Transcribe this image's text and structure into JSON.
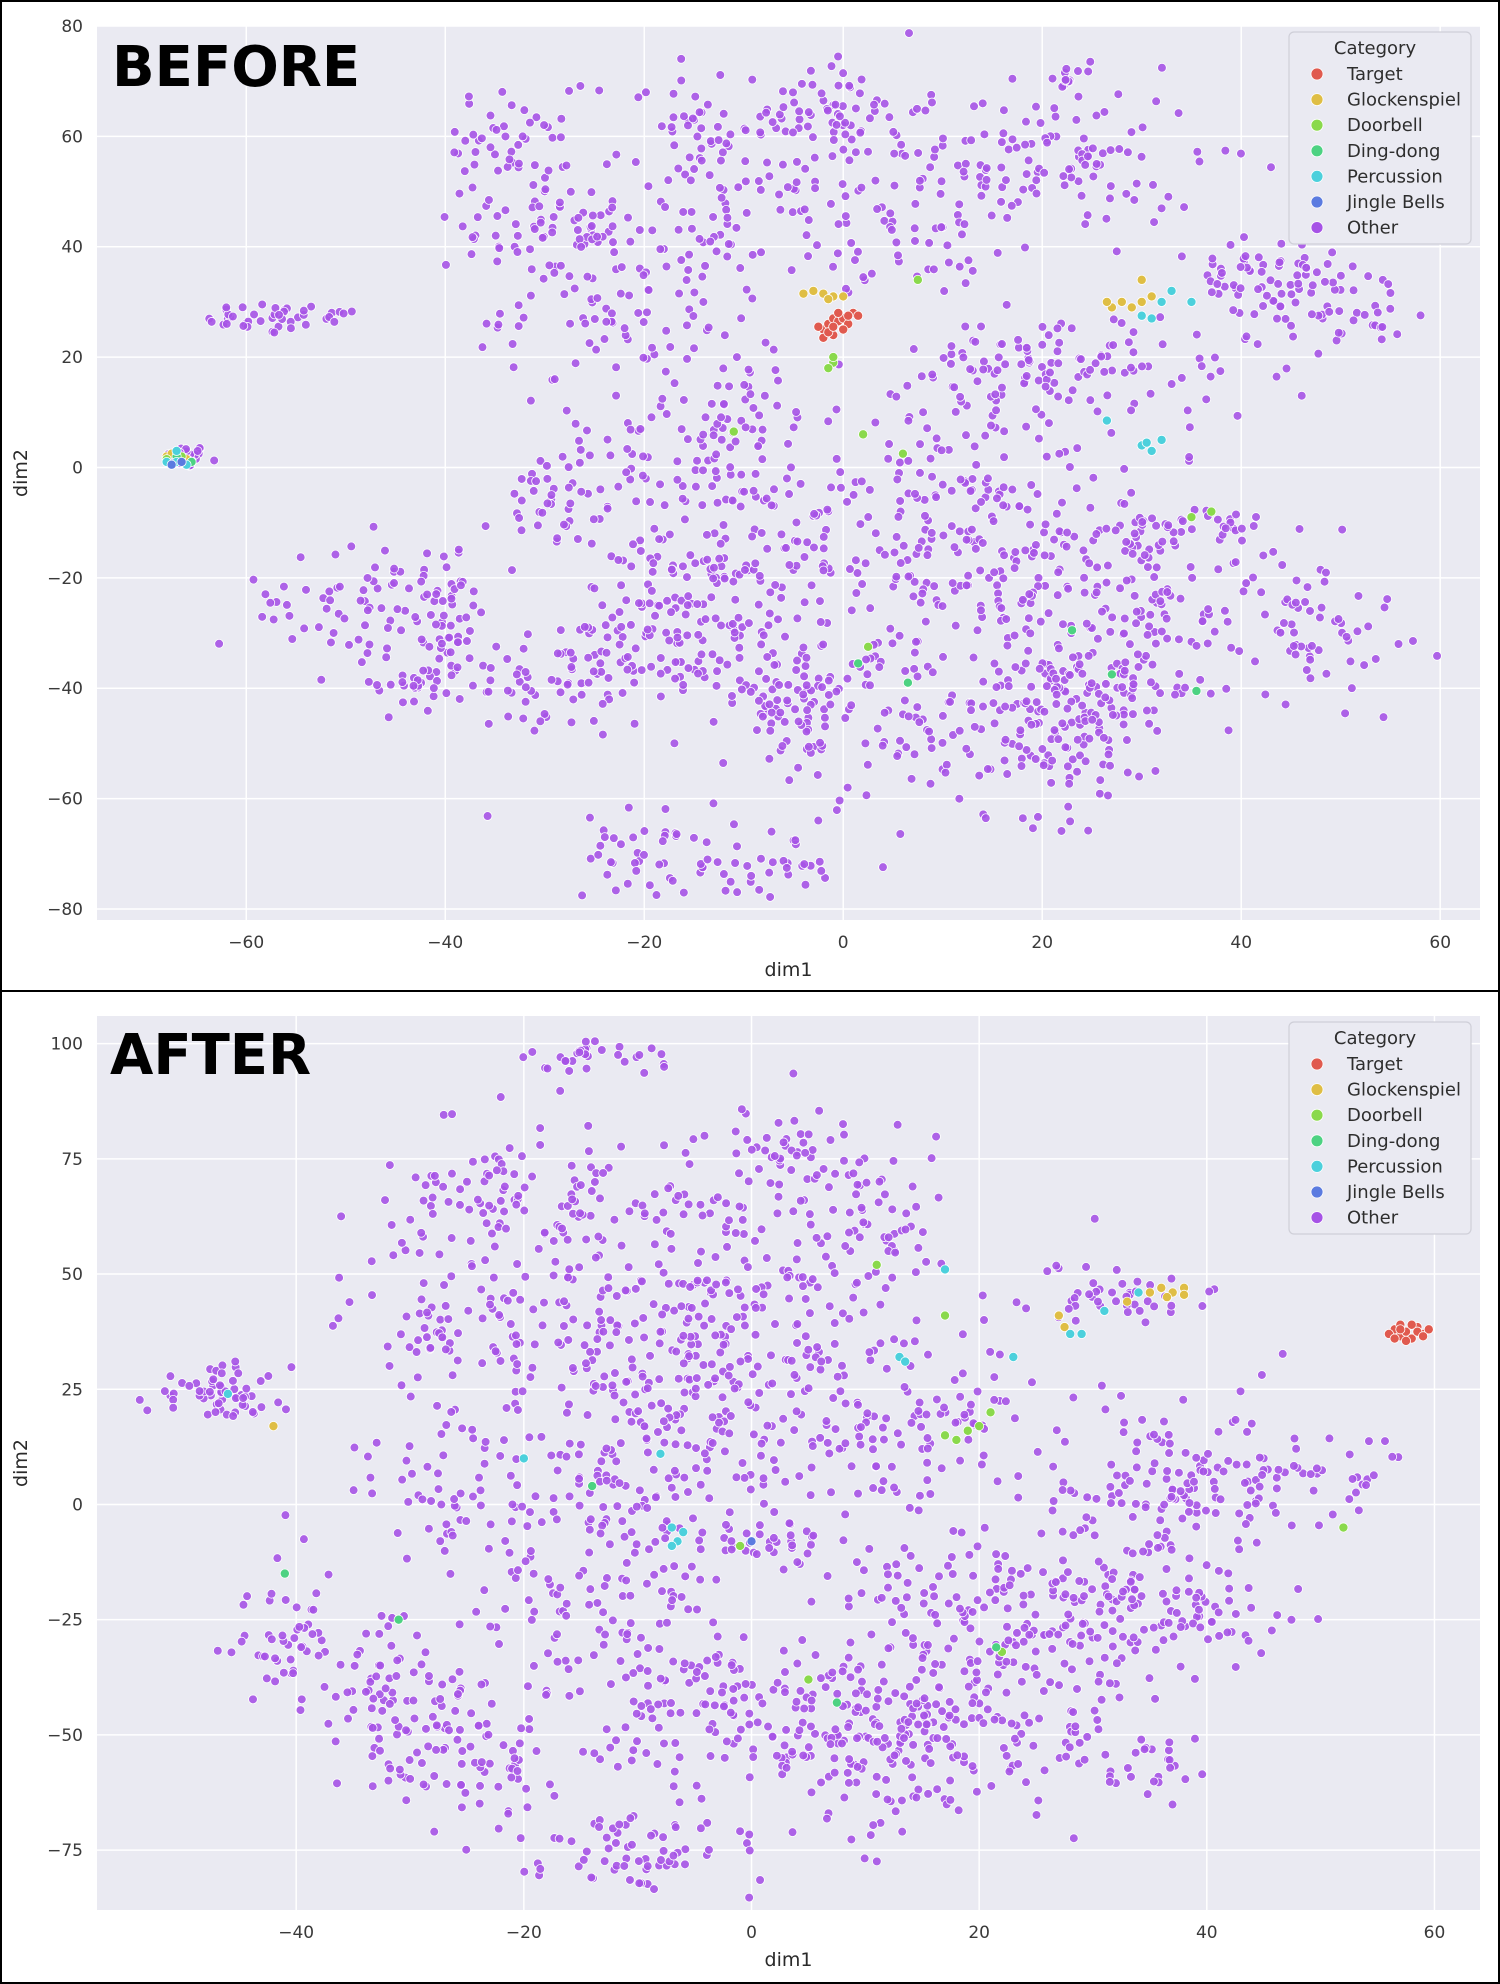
{
  "chart_data": [
    {
      "type": "scatter",
      "title": "BEFORE",
      "xlabel": "dim1",
      "ylabel": "dim2",
      "xlim": [
        -75,
        64
      ],
      "ylim": [
        -82,
        80
      ],
      "xticks": [
        -60,
        -40,
        -20,
        0,
        20,
        40,
        60
      ],
      "yticks": [
        -80,
        -60,
        -40,
        -20,
        0,
        20,
        40,
        60,
        80
      ],
      "grid": true,
      "legend": {
        "title": "Category",
        "placement": "top-right",
        "entries": [
          "Target",
          "Glockenspiel",
          "Doorbell",
          "Ding-dong",
          "Percussion",
          "Jingle Bells",
          "Other"
        ]
      },
      "colors": {
        "Target": "#e05a4f",
        "Glockenspiel": "#dfbe45",
        "Doorbell": "#8ad94c",
        "Ding-dong": "#4dd282",
        "Percussion": "#4cd0dc",
        "Jingle Bells": "#5b7be0",
        "Other": "#a653e6"
      },
      "series": [
        {
          "name": "Target",
          "points": [
            [
              -2,
              25
            ],
            [
              -1.5,
              26
            ],
            [
              -1,
              27
            ],
            [
              -0.5,
              26.5
            ],
            [
              0,
              27
            ],
            [
              0.5,
              26
            ],
            [
              1,
              28
            ],
            [
              -1,
              24
            ],
            [
              -2,
              23.5
            ],
            [
              0,
              25
            ],
            [
              -0.5,
              28
            ],
            [
              1.5,
              27.5
            ],
            [
              -1.5,
              24.5
            ],
            [
              0.5,
              27.5
            ],
            [
              -2.5,
              25.5
            ],
            [
              -1,
              25.5
            ]
          ]
        },
        {
          "name": "Glockenspiel",
          "points": [
            [
              -3,
              32
            ],
            [
              -2,
              31.5
            ],
            [
              -1,
              31
            ],
            [
              0,
              31
            ],
            [
              -1.5,
              30.5
            ],
            [
              -4,
              31.5
            ],
            [
              30,
              34
            ],
            [
              28,
              30
            ],
            [
              29,
              29
            ],
            [
              30,
              30
            ],
            [
              27,
              29
            ],
            [
              31,
              31
            ],
            [
              26.5,
              30
            ],
            [
              -68,
              2
            ],
            [
              -67.5,
              2.5
            ],
            [
              -66,
              1.5
            ]
          ]
        },
        {
          "name": "Doorbell",
          "points": [
            [
              -1,
              19
            ],
            [
              -1.5,
              18
            ],
            [
              -1,
              20
            ],
            [
              7.5,
              34
            ],
            [
              -11,
              6.5
            ],
            [
              2,
              6
            ],
            [
              6,
              2.5
            ],
            [
              35,
              -9
            ],
            [
              37,
              -8
            ],
            [
              2.5,
              -32.5
            ],
            [
              -68,
              1.5
            ],
            [
              -66.5,
              2
            ]
          ]
        },
        {
          "name": "Ding-dong",
          "points": [
            [
              1.5,
              -35.5
            ],
            [
              6.5,
              -39
            ],
            [
              23,
              -29.5
            ],
            [
              27,
              -37.5
            ],
            [
              35.5,
              -40.5
            ],
            [
              -67,
              2
            ],
            [
              -65.5,
              1
            ]
          ]
        },
        {
          "name": "Percussion",
          "points": [
            [
              26.5,
              8.5
            ],
            [
              30,
              4
            ],
            [
              31,
              3
            ],
            [
              32,
              5
            ],
            [
              30.5,
              4.5
            ],
            [
              31,
              27
            ],
            [
              32,
              30
            ],
            [
              33,
              32
            ],
            [
              35,
              30
            ],
            [
              30,
              27.5
            ],
            [
              -67,
              3
            ],
            [
              -66,
              0.5
            ],
            [
              -68,
              1
            ],
            [
              -67,
              1
            ]
          ]
        },
        {
          "name": "Jingle Bells",
          "points": [
            [
              -66.5,
              1
            ],
            [
              -67.5,
              0.5
            ]
          ]
        },
        {
          "name": "Other",
          "points": []
        }
      ]
    },
    {
      "type": "scatter",
      "title": "AFTER",
      "xlabel": "dim1",
      "ylabel": "dim2",
      "xlim": [
        -57.5,
        64
      ],
      "ylim": [
        -88,
        106
      ],
      "xticks": [
        -40,
        -20,
        0,
        20,
        40,
        60
      ],
      "yticks": [
        -75,
        -50,
        -25,
        0,
        25,
        50,
        75,
        100
      ],
      "grid": true,
      "legend": {
        "title": "Category",
        "placement": "top-right",
        "entries": [
          "Target",
          "Glockenspiel",
          "Doorbell",
          "Ding-dong",
          "Percussion",
          "Jingle Bells",
          "Other"
        ]
      },
      "colors": {
        "Target": "#e05a4f",
        "Glockenspiel": "#dfbe45",
        "Doorbell": "#8ad94c",
        "Ding-dong": "#4dd282",
        "Percussion": "#4cd0dc",
        "Jingle Bells": "#5b7be0",
        "Other": "#a653e6"
      },
      "series": [
        {
          "name": "Target",
          "points": [
            [
              56.5,
              38
            ],
            [
              57,
              36.5
            ],
            [
              57.5,
              37.5
            ],
            [
              58,
              36
            ],
            [
              58.5,
              38.5
            ],
            [
              59,
              37
            ],
            [
              57,
              39
            ],
            [
              56,
              37
            ],
            [
              58,
              39
            ],
            [
              59.5,
              38
            ],
            [
              57.5,
              35.5
            ],
            [
              56.5,
              36
            ],
            [
              58.5,
              37.5
            ],
            [
              57,
              38
            ],
            [
              59,
              36.5
            ]
          ]
        },
        {
          "name": "Glockenspiel",
          "points": [
            [
              27,
              41
            ],
            [
              33,
              44
            ],
            [
              35,
              46
            ],
            [
              36,
              47
            ],
            [
              37,
              46
            ],
            [
              38,
              47
            ],
            [
              36.5,
              45
            ],
            [
              38,
              45.5
            ],
            [
              -42,
              17
            ],
            [
              27.5,
              38.5
            ]
          ]
        },
        {
          "name": "Doorbell",
          "points": [
            [
              11,
              52
            ],
            [
              17,
              41
            ],
            [
              17,
              15
            ],
            [
              18,
              14
            ],
            [
              19,
              16
            ],
            [
              20,
              17
            ],
            [
              21,
              20
            ],
            [
              22,
              -32
            ],
            [
              52,
              -5
            ],
            [
              5,
              -38
            ],
            [
              -1,
              -9
            ]
          ]
        },
        {
          "name": "Ding-dong",
          "points": [
            [
              -41,
              -15
            ],
            [
              -31,
              -25
            ],
            [
              -14,
              4
            ],
            [
              7.5,
              -43
            ],
            [
              21.5,
              -31
            ]
          ]
        },
        {
          "name": "Percussion",
          "points": [
            [
              -46,
              24
            ],
            [
              -20,
              10
            ],
            [
              -8,
              11
            ],
            [
              -7,
              -5
            ],
            [
              -6,
              -6
            ],
            [
              -6.5,
              -8
            ],
            [
              -7,
              -9
            ],
            [
              13,
              32
            ],
            [
              13.5,
              31
            ],
            [
              17,
              51
            ],
            [
              23,
              32
            ],
            [
              28,
              37
            ],
            [
              29,
              37
            ],
            [
              31,
              42
            ],
            [
              34,
              46
            ]
          ]
        },
        {
          "name": "Jingle Bells",
          "points": [
            [
              0,
              -8
            ]
          ]
        },
        {
          "name": "Other",
          "points": []
        }
      ]
    }
  ]
}
